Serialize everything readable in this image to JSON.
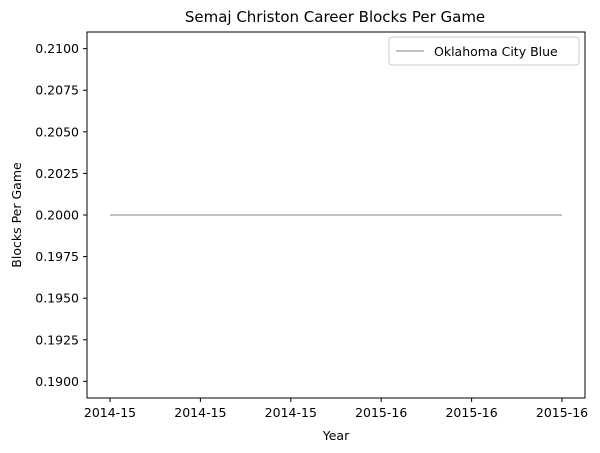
{
  "chart_data": {
    "type": "line",
    "title": "Semaj Christon Career Blocks Per Game",
    "xlabel": "Year",
    "ylabel": "Blocks Per Game",
    "x_tick_labels": [
      "2014-15",
      "2014-15",
      "2014-15",
      "2015-16",
      "2015-16",
      "2015-16"
    ],
    "x": [
      "2014-15",
      "2015-16"
    ],
    "ylim": [
      0.189,
      0.211
    ],
    "y_ticks": [
      "0.1900",
      "0.1925",
      "0.1950",
      "0.1975",
      "0.2000",
      "0.2025",
      "0.2050",
      "0.2075",
      "0.2100"
    ],
    "series": [
      {
        "name": "Oklahoma City Blue",
        "values": [
          0.2,
          0.2
        ],
        "color": "#c0c0c0"
      }
    ],
    "legend": "top-right",
    "grid": false
  }
}
